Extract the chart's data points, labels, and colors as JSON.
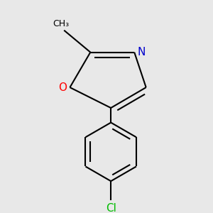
{
  "background_color": "#e8e8e8",
  "bond_color": "#000000",
  "bond_width": 1.5,
  "O_color": "#ff0000",
  "N_color": "#0000cc",
  "Cl_color": "#00bb00",
  "methyl_text": "CH₃",
  "Cl_text": "Cl",
  "O_text": "O",
  "N_text": "N"
}
